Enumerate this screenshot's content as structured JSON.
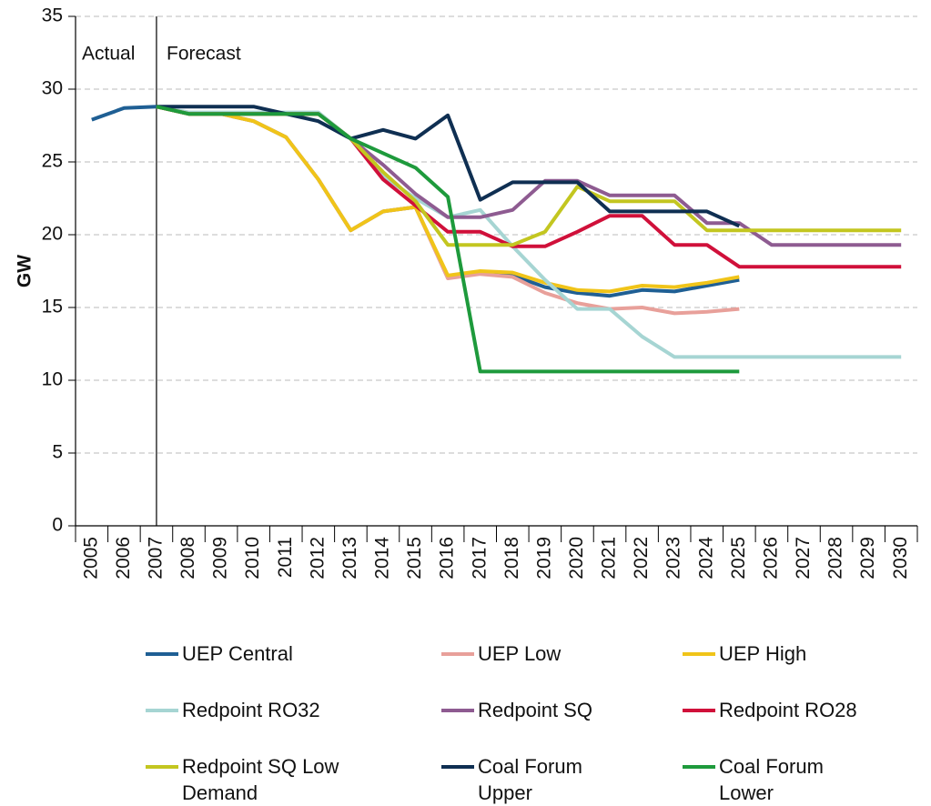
{
  "chart_data": {
    "type": "line",
    "ylabel": "GW",
    "annotations": [
      "Actual",
      "Forecast"
    ],
    "categories": [
      "2005",
      "2006",
      "2007",
      "2008",
      "2009",
      "2010",
      "2011",
      "2012",
      "2013",
      "2014",
      "2015",
      "2016",
      "2017",
      "2018",
      "2019",
      "2020",
      "2021",
      "2022",
      "2023",
      "2024",
      "2025",
      "2026",
      "2027",
      "2028",
      "2029",
      "2030"
    ],
    "ylim": [
      0,
      35
    ],
    "yticks": [
      0,
      5,
      10,
      15,
      20,
      25,
      30,
      35
    ],
    "grid": true,
    "series": [
      {
        "name": "UEP Central",
        "color": "#1f5f94",
        "values": [
          27.9,
          28.7,
          28.8,
          28.3,
          28.3,
          27.8,
          26.7,
          23.8,
          20.3,
          21.6,
          21.9,
          17.1,
          17.4,
          17.2,
          16.4,
          16.0,
          15.8,
          16.2,
          16.1,
          16.5,
          16.9,
          null,
          null,
          null,
          null,
          null
        ]
      },
      {
        "name": "UEP Low",
        "color": "#e8a09a",
        "values": [
          null,
          null,
          28.8,
          28.3,
          28.3,
          27.8,
          26.7,
          23.8,
          20.3,
          21.6,
          21.9,
          17.0,
          17.3,
          17.1,
          16.0,
          15.3,
          14.9,
          15.0,
          14.6,
          14.7,
          14.9,
          null,
          null,
          null,
          null,
          null
        ]
      },
      {
        "name": "UEP High",
        "color": "#f0c419",
        "values": [
          null,
          null,
          28.8,
          28.3,
          28.3,
          27.8,
          26.7,
          23.8,
          20.3,
          21.6,
          21.9,
          17.2,
          17.5,
          17.4,
          16.7,
          16.2,
          16.1,
          16.5,
          16.4,
          16.7,
          17.1,
          null,
          null,
          null,
          null,
          null
        ]
      },
      {
        "name": "Redpoint RO32",
        "color": "#a6d5d3",
        "values": [
          null,
          null,
          28.8,
          28.4,
          28.4,
          28.4,
          28.4,
          28.4,
          26.6,
          24.0,
          22.5,
          21.2,
          21.7,
          19.2,
          16.9,
          14.9,
          14.9,
          13.0,
          11.6,
          11.6,
          11.6,
          11.6,
          11.6,
          11.6,
          11.6,
          11.6
        ]
      },
      {
        "name": "Redpoint SQ",
        "color": "#8e5b91",
        "values": [
          null,
          null,
          28.8,
          28.3,
          28.3,
          28.3,
          28.3,
          28.3,
          26.6,
          24.8,
          22.8,
          21.2,
          21.2,
          21.7,
          23.7,
          23.7,
          22.7,
          22.7,
          22.7,
          20.8,
          20.8,
          19.3,
          19.3,
          19.3,
          19.3,
          19.3
        ]
      },
      {
        "name": "Redpoint RO28",
        "color": "#d0103a",
        "values": [
          null,
          null,
          28.8,
          28.3,
          28.3,
          28.3,
          28.3,
          28.3,
          26.6,
          23.8,
          22.0,
          20.2,
          20.2,
          19.2,
          19.2,
          20.2,
          21.3,
          21.3,
          19.3,
          19.3,
          17.8,
          17.8,
          17.8,
          17.8,
          17.8,
          17.8
        ]
      },
      {
        "name": "Redpoint SQ Low Demand",
        "color": "#c3c620",
        "values": [
          null,
          null,
          28.8,
          28.3,
          28.3,
          28.3,
          28.3,
          28.3,
          26.6,
          24.3,
          22.3,
          19.3,
          19.3,
          19.3,
          20.2,
          23.3,
          22.3,
          22.3,
          22.3,
          20.3,
          20.3,
          20.3,
          20.3,
          20.3,
          20.3,
          20.3
        ]
      },
      {
        "name": "Coal Forum Upper",
        "color": "#0f2f52",
        "values": [
          null,
          null,
          28.8,
          28.8,
          28.8,
          28.8,
          28.3,
          27.8,
          26.6,
          27.2,
          26.6,
          28.2,
          22.4,
          23.6,
          23.6,
          23.6,
          21.6,
          21.6,
          21.6,
          21.6,
          20.6,
          null,
          null,
          null,
          null,
          null
        ]
      },
      {
        "name": "Coal Forum Lower",
        "color": "#1e9a3c",
        "values": [
          null,
          null,
          28.8,
          28.3,
          28.3,
          28.3,
          28.3,
          28.3,
          26.6,
          25.6,
          24.6,
          22.6,
          10.6,
          10.6,
          10.6,
          10.6,
          10.6,
          10.6,
          10.6,
          10.6,
          10.6,
          null,
          null,
          null,
          null,
          null
        ]
      }
    ]
  }
}
